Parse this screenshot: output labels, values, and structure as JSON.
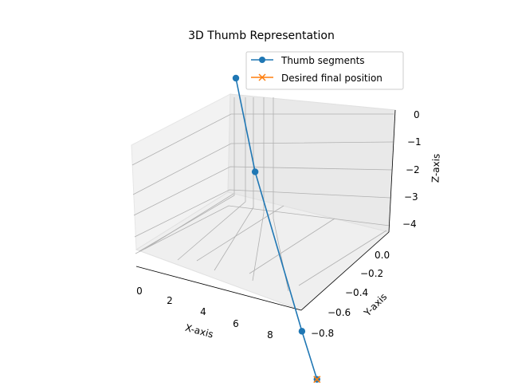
{
  "chart_data": {
    "type": "line",
    "projection": "3d",
    "title": "3D Thumb Representation",
    "xlabel": "X-axis",
    "ylabel": "Y-axis",
    "zlabel": "Z-axis",
    "grid": true,
    "legend_position": "top-right",
    "xticks": [
      "0",
      "2",
      "4",
      "6",
      "8"
    ],
    "yticks": [
      "0.0",
      "−0.2",
      "−0.4",
      "−0.6",
      "−0.8"
    ],
    "zticks": [
      "0",
      "−1",
      "−2",
      "−3",
      "−4"
    ],
    "series": [
      {
        "name": "Thumb segments",
        "marker": "circle",
        "color": "#1f77b4",
        "points": [
          {
            "x": 0.0,
            "y": 0.0,
            "z": 0.0
          },
          {
            "x": 3.0,
            "y": 0.0,
            "z": -1.5
          },
          {
            "x": 8.0,
            "y": -0.5,
            "z": -3.5
          },
          {
            "x": 9.0,
            "y": -0.8,
            "z": -4.0
          }
        ]
      },
      {
        "name": "Desired final position",
        "marker": "x",
        "color": "#ff7f0e",
        "points": [
          {
            "x": 9.0,
            "y": -0.8,
            "z": -4.0
          }
        ]
      }
    ]
  }
}
